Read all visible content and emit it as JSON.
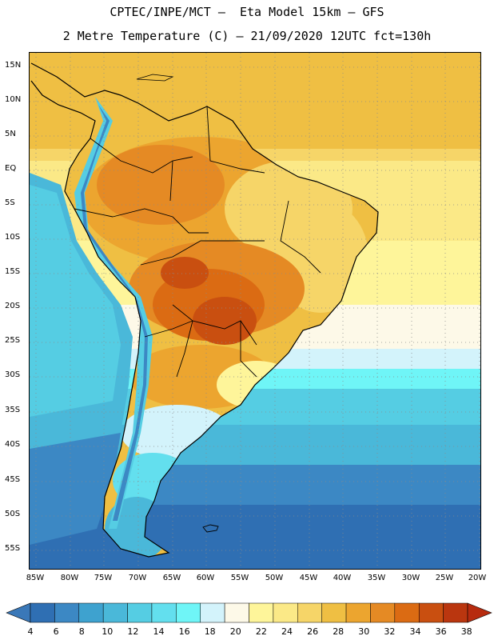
{
  "header": {
    "line1": "CPTEC/INPE/MCT –  Eta Model 15km – GFS",
    "line2": "2 Metre Temperature (C) – 21/09/2020 12UTC fct=130h"
  },
  "map": {
    "lat_labels": [
      "15N",
      "10N",
      "5N",
      "EQ",
      "5S",
      "10S",
      "15S",
      "20S",
      "25S",
      "30S",
      "35S",
      "40S",
      "45S",
      "50S",
      "55S"
    ],
    "lon_labels": [
      "85W",
      "80W",
      "75W",
      "70W",
      "65W",
      "60W",
      "55W",
      "50W",
      "45W",
      "40W",
      "35W",
      "30W",
      "25W",
      "20W"
    ]
  },
  "colorbar": {
    "labels": [
      "4",
      "6",
      "8",
      "10",
      "12",
      "14",
      "16",
      "18",
      "20",
      "22",
      "24",
      "26",
      "28",
      "30",
      "32",
      "34",
      "36",
      "38"
    ],
    "colors": [
      "#3a78b8",
      "#2f6fb3",
      "#3c88c4",
      "#3ea2cf",
      "#4ab8d9",
      "#55cde3",
      "#63dfee",
      "#6ff5f7",
      "#d3f3fb",
      "#fdf9e8",
      "#fef59a",
      "#fbe987",
      "#f6d568",
      "#efbf43",
      "#eca52f",
      "#e58a24",
      "#db6b13",
      "#c94f10",
      "#ba360f",
      "#b72b0f"
    ],
    "legend": "2 Metre Temperature (C)"
  }
}
